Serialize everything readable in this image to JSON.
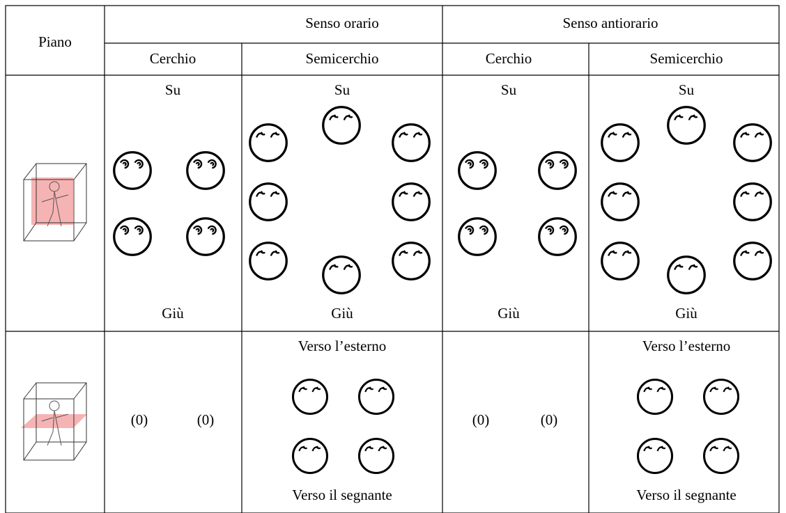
{
  "table": {
    "header": [
      [
        "Piano",
        "Senso orario",
        "Senso antiorario"
      ],
      [
        "Cerchio",
        "Semicerchio",
        "Cerchio",
        "Semicerchio"
      ]
    ],
    "rows": [
      [
        {
          "top": "Su",
          "bottom": "Giù"
        },
        {
          "top": "Su",
          "bottom": "Giù"
        },
        {
          "top": "Su",
          "bottom": "Giù"
        },
        {
          "top": "Su",
          "bottom": "Giù"
        }
      ],
      [
        {
          "left": "(0)",
          "right": "(0)"
        },
        {
          "top": "Verso l’esterno",
          "bottom": "Verso il segnante"
        },
        {
          "left": "(0)",
          "right": "(0)"
        },
        {
          "top": "Verso l’esterno",
          "bottom": "Verso il segnante"
        }
      ]
    ]
  }
}
